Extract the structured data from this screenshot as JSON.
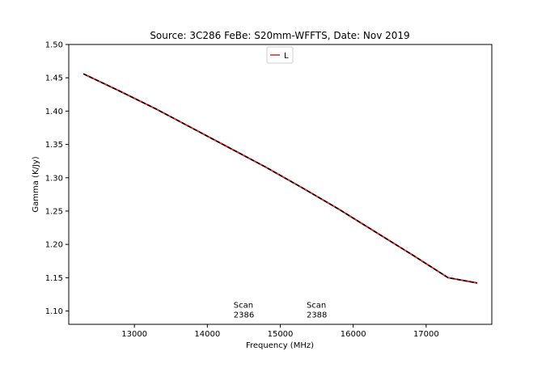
{
  "chart_data": {
    "type": "line",
    "title": "Source: 3C286 FeBe: S20mm-WFFTS, Date: Nov 2019",
    "xlabel": "Frequency (MHz)",
    "ylabel": "Gamma (K/Jy)",
    "xlim": [
      12100,
      17900
    ],
    "ylim": [
      1.08,
      1.5
    ],
    "xticks": [
      13000,
      14000,
      15000,
      16000,
      17000
    ],
    "xtick_labels": [
      "13000",
      "14000",
      "15000",
      "16000",
      "17000"
    ],
    "yticks": [
      1.1,
      1.15,
      1.2,
      1.25,
      1.3,
      1.35,
      1.4,
      1.45,
      1.5
    ],
    "ytick_labels": [
      "1.10",
      "1.15",
      "1.20",
      "1.25",
      "1.30",
      "1.35",
      "1.40",
      "1.45",
      "1.50"
    ],
    "grid": false,
    "legend": {
      "position": "upper-center",
      "entries": [
        "L"
      ]
    },
    "series": [
      {
        "name": "L",
        "color": "#d62728",
        "style": "solid",
        "x": [
          12300,
          12800,
          13300,
          13800,
          14300,
          14800,
          15300,
          15800,
          16300,
          16800,
          17300,
          17700
        ],
        "y": [
          1.456,
          1.43,
          1.403,
          1.374,
          1.345,
          1.316,
          1.285,
          1.253,
          1.219,
          1.185,
          1.15,
          1.142
        ]
      },
      {
        "color": "#000000",
        "style": "dashed",
        "x": [
          12300,
          12800,
          13300,
          13800,
          14300,
          14800,
          15300,
          15800,
          16300,
          16800,
          17300,
          17700
        ],
        "y": [
          1.456,
          1.43,
          1.403,
          1.374,
          1.345,
          1.316,
          1.285,
          1.253,
          1.219,
          1.185,
          1.15,
          1.142
        ]
      }
    ],
    "annotations": [
      {
        "line1": "Scan",
        "line2": "2386",
        "x": 14360,
        "y": 1.1
      },
      {
        "line1": "Scan",
        "line2": "2388",
        "x": 15360,
        "y": 1.1
      }
    ]
  }
}
